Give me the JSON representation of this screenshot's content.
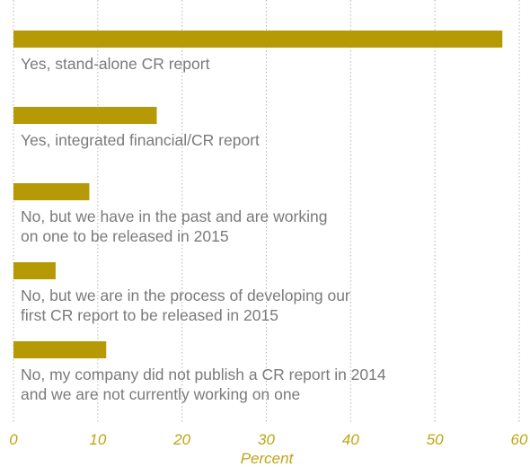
{
  "chart_data": {
    "type": "bar",
    "orientation": "horizontal",
    "categories": [
      "Yes, stand-alone CR report",
      "Yes, integrated financial/CR report",
      "No, but we have in the past and are working\non one to be released in 2015",
      "No, but we are in the process of developing our\nfirst CR report to be released in 2015",
      "No, my company did not publish a CR report in 2014\nand we are not currently working on one"
    ],
    "values": [
      58,
      17,
      9,
      5,
      11
    ],
    "color": "#b59a05",
    "xlabel": "Percent",
    "xlim": [
      0,
      60
    ],
    "xticks": [
      0,
      10,
      20,
      30,
      40,
      50,
      60
    ],
    "grid": true
  }
}
